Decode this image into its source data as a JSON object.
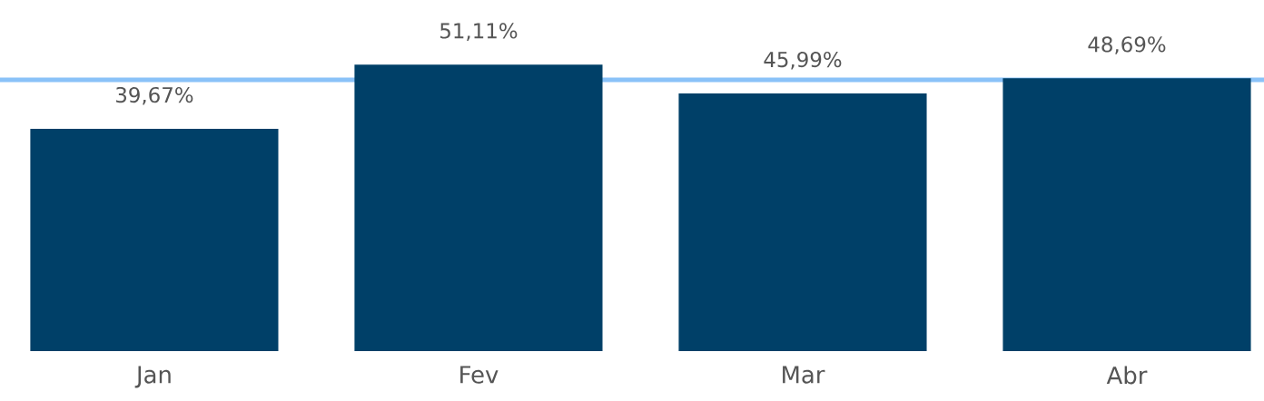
{
  "chart_data": {
    "type": "bar",
    "categories": [
      "Jan",
      "Fev",
      "Mar",
      "Abr"
    ],
    "values": [
      39.67,
      51.11,
      45.99,
      48.69
    ],
    "color": "#004068",
    "value_labels": [
      "39,67%",
      "51,11%",
      "45,99%",
      "48,69%"
    ],
    "ref_lines": [
      {
        "axis": "y",
        "value": 48.4,
        "color": "#8ac2f8"
      }
    ]
  }
}
